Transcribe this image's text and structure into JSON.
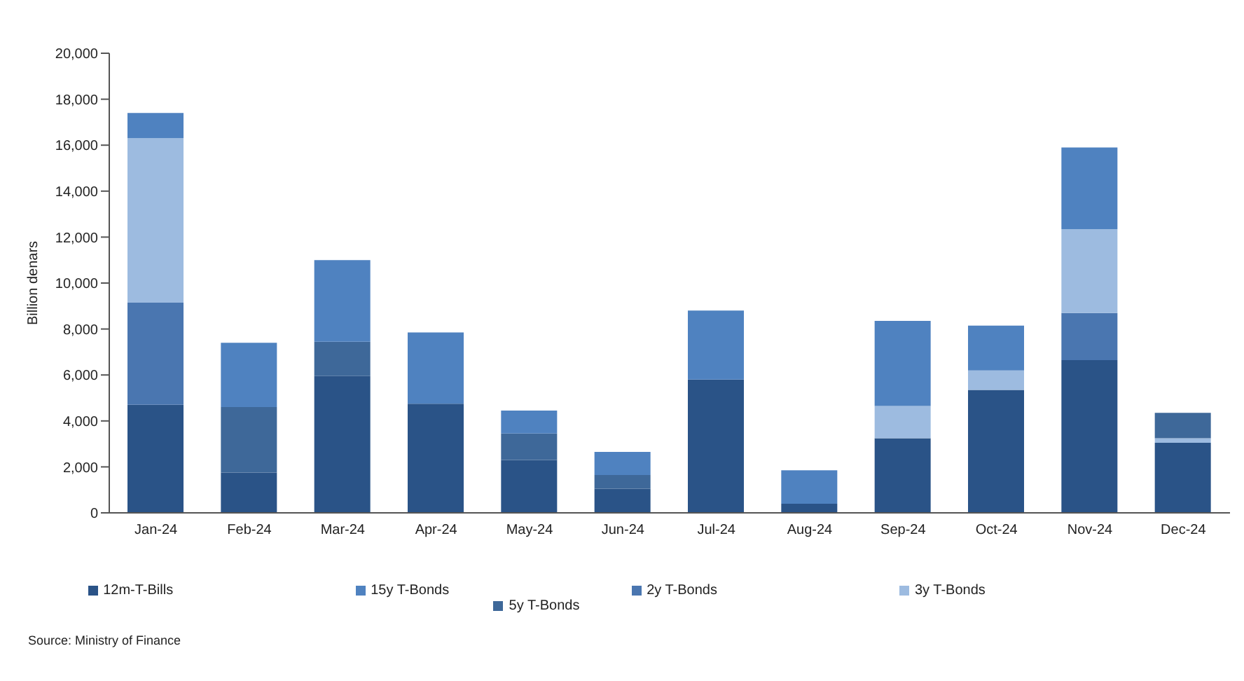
{
  "chart_data": {
    "type": "bar",
    "stacked": true,
    "ylabel": "Billion denars",
    "categories": [
      "Jan-24",
      "Feb-24",
      "Mar-24",
      "Apr-24",
      "May-24",
      "Jun-24",
      "Jul-24",
      "Aug-24",
      "Sep-24",
      "Oct-24",
      "Nov-24",
      "Dec-24"
    ],
    "series": [
      {
        "name": "12m-T-Bills",
        "color": "#2a5387",
        "values": [
          4700,
          1750,
          5950,
          4750,
          2300,
          1050,
          5800,
          400,
          3250,
          5350,
          6650,
          3050
        ]
      },
      {
        "name": "2y T-Bonds",
        "color": "#4a76b0",
        "values": [
          4450,
          null,
          null,
          null,
          null,
          null,
          null,
          null,
          null,
          null,
          2050,
          null
        ]
      },
      {
        "name": "3y T-Bonds",
        "color": "#9dbbe0",
        "values": [
          7150,
          null,
          null,
          null,
          null,
          null,
          null,
          null,
          1400,
          850,
          3650,
          200
        ]
      },
      {
        "name": "5y T-Bonds",
        "color": "#3e6899",
        "values": [
          null,
          2850,
          1500,
          null,
          1150,
          600,
          null,
          null,
          null,
          null,
          null,
          1100
        ]
      },
      {
        "name": "15y T-Bonds",
        "color": "#4f82c0",
        "values": [
          1100,
          2800,
          3550,
          3100,
          1000,
          1000,
          3000,
          1450,
          3700,
          1950,
          3550,
          null
        ]
      }
    ],
    "ylim": [
      0,
      20000
    ],
    "yticks": [
      {
        "value": 0,
        "label": "0"
      },
      {
        "value": 2000,
        "label": "2,000"
      },
      {
        "value": 4000,
        "label": "4,000"
      },
      {
        "value": 6000,
        "label": "6,000"
      },
      {
        "value": 8000,
        "label": "8,000"
      },
      {
        "value": 10000,
        "label": "10,000"
      },
      {
        "value": 12000,
        "label": "12,000"
      },
      {
        "value": 14000,
        "label": "14,000"
      },
      {
        "value": 16000,
        "label": "16,000"
      },
      {
        "value": 18000,
        "label": "18,000"
      },
      {
        "value": 20000,
        "label": "20,000"
      }
    ],
    "grid": false,
    "legend": "bottom",
    "annotations": [
      "Source: Ministry of Finance"
    ]
  }
}
